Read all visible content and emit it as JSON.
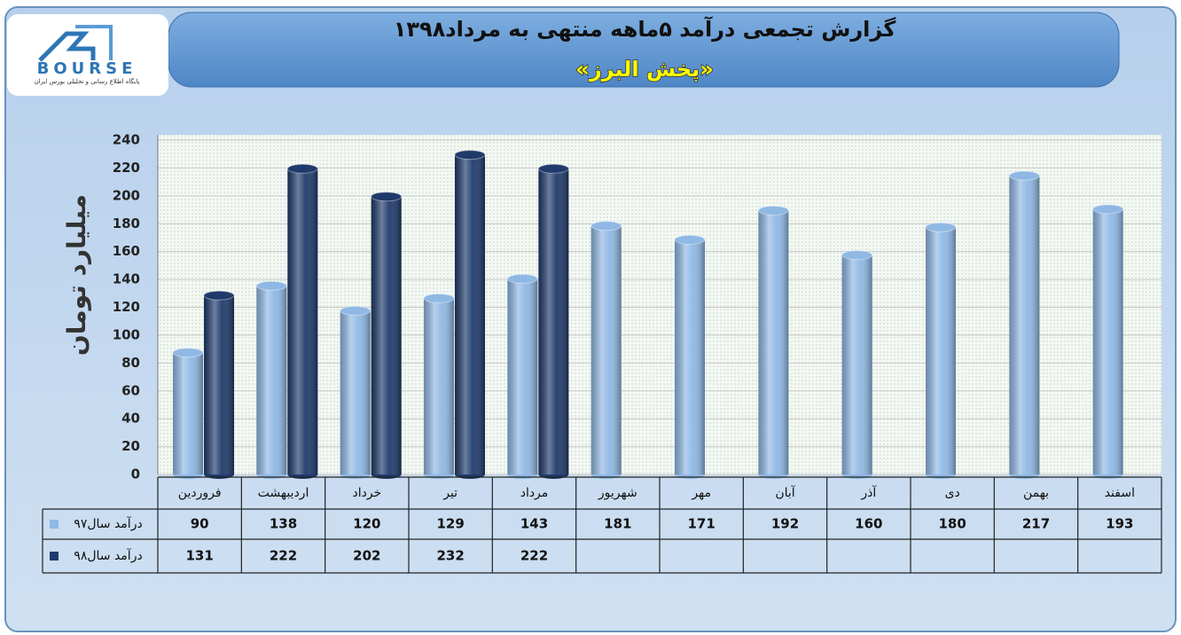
{
  "logo": {
    "name": "BOURSE",
    "tagline": "پایگاه اطلاع رسانی و تحلیلی بورس ایران"
  },
  "chart_data": {
    "type": "bar",
    "title": "گزارش تجمعی درآمد  ۵ماهه منتهی به مرداد۱۳۹۸",
    "subtitle": "«پخش البرز»",
    "y_label": "میلیارد تومان",
    "categories": [
      "فروردین",
      "اردیبهشت",
      "خرداد",
      "تیر",
      "مرداد",
      "شهریور",
      "مهر",
      "آبان",
      "آذر",
      "دی",
      "بهمن",
      "اسفند"
    ],
    "series": [
      {
        "name": "درآمد سال۹۷",
        "color": "#8fb8e4",
        "values": [
          90,
          138,
          120,
          129,
          143,
          181,
          171,
          192,
          160,
          180,
          217,
          193
        ]
      },
      {
        "name": "درآمد سال۹۸",
        "color": "#1f3a6b",
        "values": [
          131,
          222,
          202,
          232,
          222,
          null,
          null,
          null,
          null,
          null,
          null,
          null
        ]
      }
    ],
    "ylim": [
      0,
      240
    ],
    "yticks": [
      0,
      20,
      40,
      60,
      80,
      100,
      120,
      140,
      160,
      180,
      200,
      220,
      240
    ],
    "grid": true
  }
}
